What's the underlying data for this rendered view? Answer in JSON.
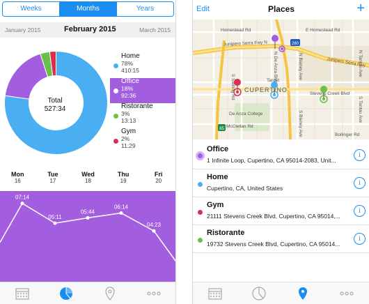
{
  "left": {
    "segments": [
      "Weeks",
      "Months",
      "Years"
    ],
    "active_segment": "Months",
    "month_prev": "January 2015",
    "month_current": "February 2015",
    "month_next": "March 2015",
    "total_label": "Total",
    "total_value": "527:34",
    "legend": [
      {
        "name": "Home",
        "percent": "78%",
        "time": "410:15",
        "color": "#4aaef2"
      },
      {
        "name": "Office",
        "percent": "18%",
        "time": "92:36",
        "color": "#a35ee0"
      },
      {
        "name": "Ristorante",
        "percent": "3%",
        "time": "13:13",
        "color": "#6cbf4a"
      },
      {
        "name": "Gym",
        "percent": "2%",
        "time": "11:29",
        "color": "#d9304f"
      }
    ],
    "days": [
      {
        "name": "Mon",
        "date": "16"
      },
      {
        "name": "Tue",
        "date": "17"
      },
      {
        "name": "Wed",
        "date": "18"
      },
      {
        "name": "Thu",
        "date": "19"
      },
      {
        "name": "Fri",
        "date": "20"
      }
    ],
    "line_labels": [
      "07:14",
      "05:11",
      "05:44",
      "06:14",
      "04:23"
    ]
  },
  "right": {
    "edit_label": "Edit",
    "title": "Places",
    "add_label": "+",
    "map_labels": {
      "homestead_w": "Homestead Rd",
      "homestead_e": "E Homestead Rd",
      "junipero": "Junipero Serra Fwy N",
      "junipero_s": "Junipero Serra Fwy",
      "shield_280": "280",
      "shield_85": "85",
      "cupertino": "CUPERTINO",
      "target": "Target",
      "deanza": "De Anza College",
      "mcclellan": "McClellan Rd",
      "stevens": "Stevens Creek Blvd",
      "stelling": "S Stelling Rd",
      "deanza_blvd": "N De Anza Blvd",
      "blaney": "N Blaney Ave",
      "blaney_s": "S Blaney Ave",
      "tantau": "N Tantau Ave",
      "tantau_s": "S Tantau Ave",
      "bollinger": "Bollinger Rd"
    },
    "places": [
      {
        "name": "Office",
        "address": "1 Infinite Loop, Cupertino, CA  95014-2083, Unit...",
        "color": "#a35ee0"
      },
      {
        "name": "Home",
        "address": "Cupertino, CA, United States",
        "color": "#4aaef2"
      },
      {
        "name": "Gym",
        "address": "21111 Stevens Creek Blvd, Cupertino, CA  95014,...",
        "color": "#d9304f"
      },
      {
        "name": "Ristorante",
        "address": "19732 Stevens Creek Blvd, Cupertino, CA  95014...",
        "color": "#6cbf4a"
      }
    ]
  },
  "chart_data": [
    {
      "type": "pie",
      "categories": [
        "Home",
        "Office",
        "Ristorante",
        "Gym"
      ],
      "values": [
        78,
        18,
        3,
        2
      ],
      "title": "",
      "center_label": "Total 527:34"
    },
    {
      "type": "line",
      "categories": [
        "Mon 16",
        "Tue 17",
        "Wed 18",
        "Thu 19",
        "Fri 20"
      ],
      "values": [
        "07:14",
        "05:11",
        "05:44",
        "06:14",
        "04:23"
      ],
      "values_hours": [
        7.23,
        5.18,
        5.73,
        6.23,
        4.38
      ]
    }
  ]
}
